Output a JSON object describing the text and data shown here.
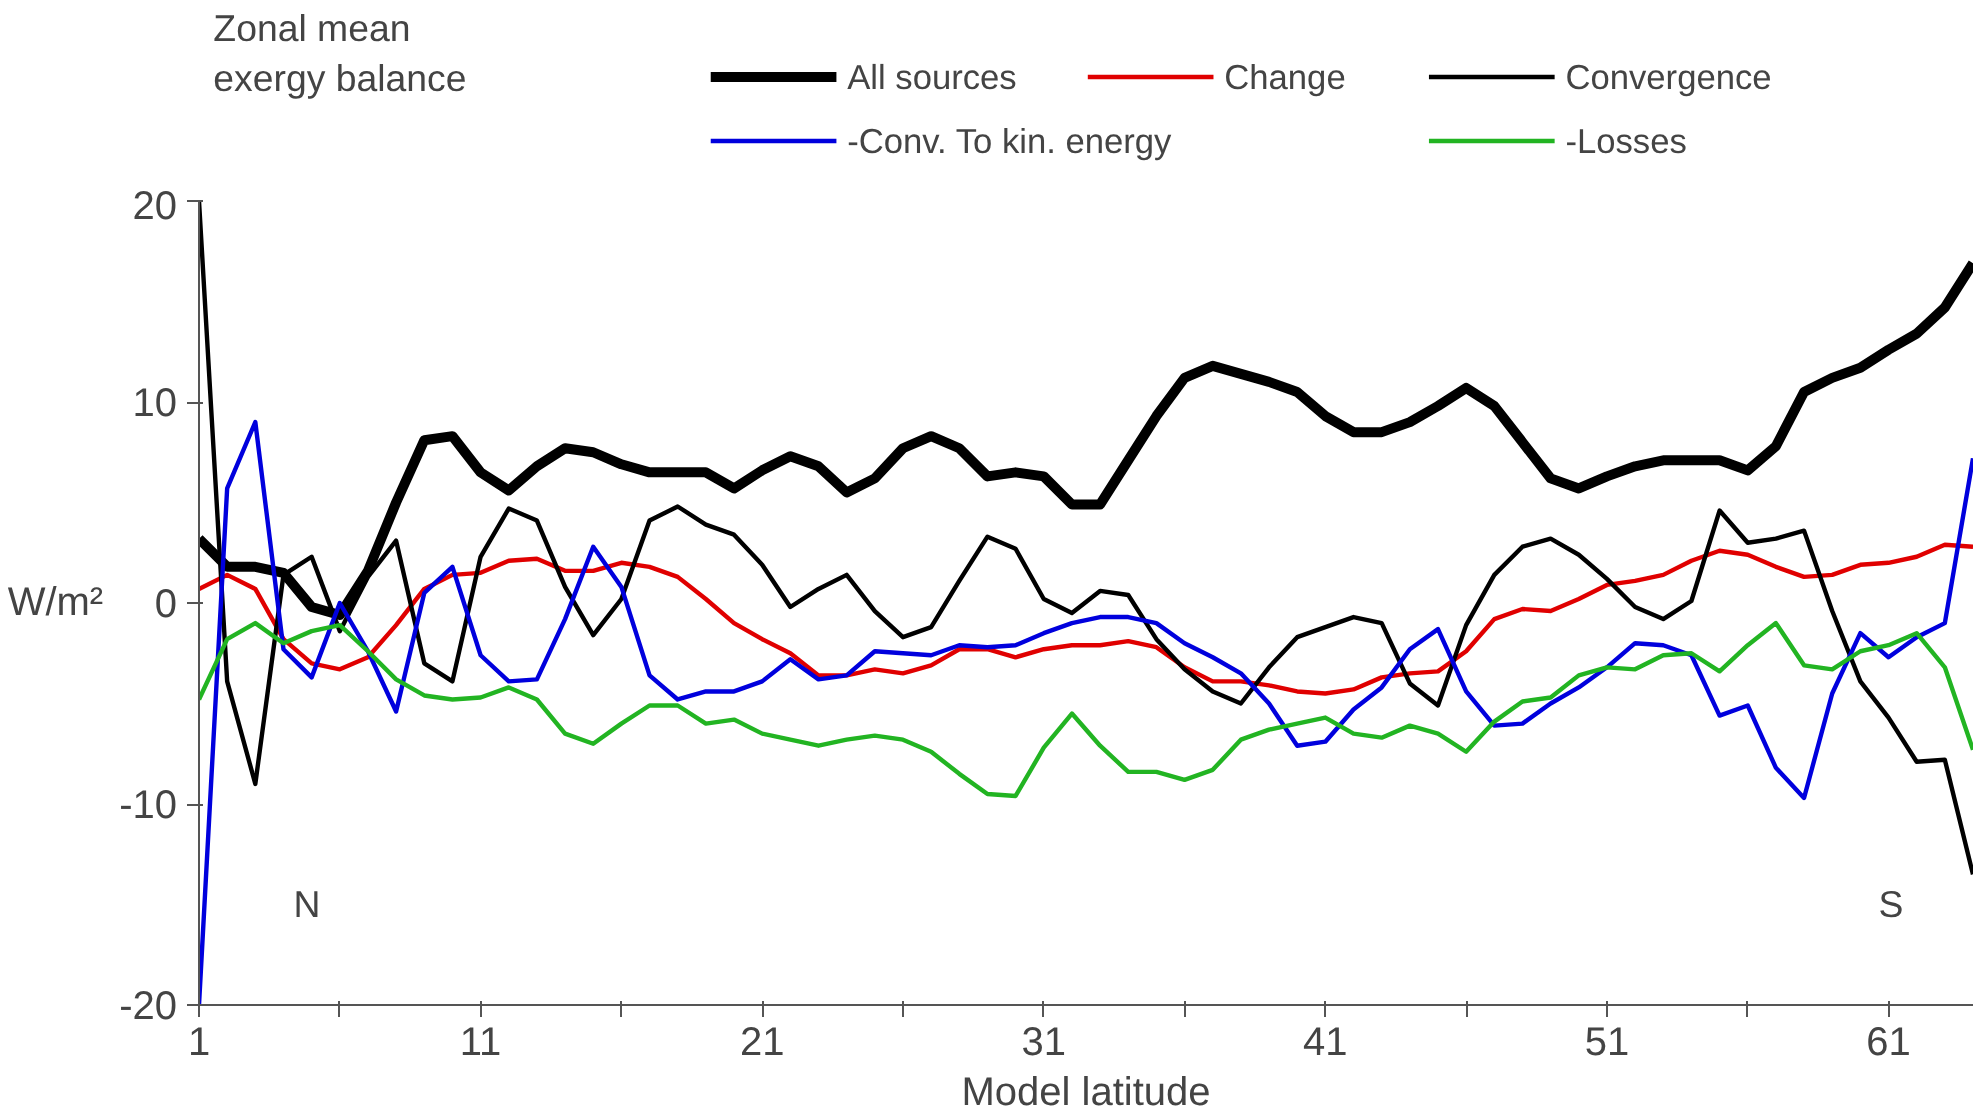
{
  "chart_data": {
    "type": "line",
    "title": "Zonal mean\nexergy balance",
    "xlabel": "Model latitude",
    "ylabel": "W/m²",
    "x": [
      1,
      2,
      3,
      4,
      5,
      6,
      7,
      8,
      9,
      10,
      11,
      12,
      13,
      14,
      15,
      16,
      17,
      18,
      19,
      20,
      21,
      22,
      23,
      24,
      25,
      26,
      27,
      28,
      29,
      30,
      31,
      32,
      33,
      34,
      35,
      36,
      37,
      38,
      39,
      40,
      41,
      42,
      43,
      44,
      45,
      46,
      47,
      48,
      49,
      50,
      51,
      52,
      53,
      54,
      55,
      56,
      57,
      58,
      59,
      60,
      61,
      62,
      63,
      64
    ],
    "series": [
      {
        "name": "All sources",
        "color": "#000000",
        "values": [
          3.2,
          1.8,
          1.8,
          1.5,
          -0.2,
          -0.6,
          1.6,
          5.0,
          8.1,
          8.3,
          6.5,
          5.6,
          6.8,
          7.7,
          7.5,
          6.9,
          6.5,
          6.5,
          6.5,
          5.7,
          6.6,
          7.3,
          6.8,
          5.5,
          6.2,
          7.7,
          8.3,
          7.7,
          6.3,
          6.5,
          6.3,
          4.9,
          4.9,
          7.1,
          9.3,
          11.2,
          11.8,
          11.4,
          11.0,
          10.5,
          9.3,
          8.5,
          8.5,
          9.0,
          9.8,
          10.7,
          9.8,
          8.0,
          6.2,
          5.7,
          6.3,
          6.8,
          7.1,
          7.1,
          7.1,
          6.6,
          7.8,
          10.5,
          11.2,
          11.7,
          12.6,
          13.4,
          14.7,
          16.9
        ]
      },
      {
        "name": "Change",
        "color": "#e00000",
        "values": [
          0.7,
          1.4,
          0.7,
          -1.8,
          -3.0,
          -3.3,
          -2.7,
          -1.1,
          0.7,
          1.4,
          1.5,
          2.1,
          2.2,
          1.6,
          1.6,
          2.0,
          1.8,
          1.3,
          0.2,
          -1.0,
          -1.8,
          -2.5,
          -3.6,
          -3.6,
          -3.3,
          -3.5,
          -3.1,
          -2.3,
          -2.3,
          -2.7,
          -2.3,
          -2.1,
          -2.1,
          -1.9,
          -2.2,
          -3.2,
          -3.9,
          -3.9,
          -4.1,
          -4.4,
          -4.5,
          -4.3,
          -3.7,
          -3.5,
          -3.4,
          -2.4,
          -0.8,
          -0.3,
          -0.4,
          0.2,
          0.9,
          1.1,
          1.4,
          2.1,
          2.6,
          2.4,
          1.8,
          1.3,
          1.4,
          1.9,
          2.0,
          2.3,
          2.9,
          2.8
        ]
      },
      {
        "name": "Convergence",
        "color": "#000000",
        "values": [
          20,
          -3.9,
          -9.0,
          1.4,
          2.3,
          -1.4,
          1.3,
          3.1,
          -3.0,
          -3.9,
          2.3,
          4.7,
          4.1,
          0.8,
          -1.6,
          0.2,
          4.1,
          4.8,
          3.9,
          3.4,
          1.9,
          -0.2,
          0.7,
          1.4,
          -0.4,
          -1.7,
          -1.2,
          1.1,
          3.3,
          2.7,
          0.2,
          -0.5,
          0.6,
          0.4,
          -1.8,
          -3.3,
          -4.4,
          -5.0,
          -3.2,
          -1.7,
          -1.2,
          -0.7,
          -1.0,
          -4.0,
          -5.1,
          -1.1,
          1.4,
          2.8,
          3.2,
          2.4,
          1.2,
          -0.2,
          -0.8,
          0.1,
          4.6,
          3.0,
          3.2,
          3.6,
          -0.4,
          -3.9,
          -5.7,
          -7.9,
          -7.8,
          -13.5
        ]
      },
      {
        "name": "-Conv. To kin. energy",
        "color": "#0000dd",
        "values": [
          -20,
          5.7,
          9.0,
          -2.3,
          -3.7,
          0.0,
          -2.4,
          -5.4,
          0.5,
          1.8,
          -2.6,
          -3.9,
          -3.8,
          -0.8,
          2.8,
          0.8,
          -3.6,
          -4.8,
          -4.4,
          -4.4,
          -3.9,
          -2.8,
          -3.8,
          -3.6,
          -2.4,
          -2.5,
          -2.6,
          -2.1,
          -2.2,
          -2.1,
          -1.5,
          -1.0,
          -0.7,
          -0.7,
          -1.0,
          -2.0,
          -2.7,
          -3.5,
          -5.0,
          -7.1,
          -6.9,
          -5.3,
          -4.2,
          -2.3,
          -1.3,
          -4.4,
          -6.1,
          -6.0,
          -5.0,
          -4.2,
          -3.2,
          -2.0,
          -2.1,
          -2.6,
          -5.6,
          -5.1,
          -8.2,
          -9.7,
          -4.5,
          -1.5,
          -2.7,
          -1.7,
          -1.0,
          7.2
        ]
      },
      {
        "name": "-Losses",
        "color": "#22b422",
        "values": [
          -4.8,
          -1.8,
          -1.0,
          -2.0,
          -1.4,
          -1.1,
          -2.4,
          -3.8,
          -4.6,
          -4.8,
          -4.7,
          -4.2,
          -4.8,
          -6.5,
          -7.0,
          -6.0,
          -5.1,
          -5.1,
          -6.0,
          -5.8,
          -6.5,
          -6.8,
          -7.1,
          -6.8,
          -6.6,
          -6.8,
          -7.4,
          -8.5,
          -9.5,
          -9.6,
          -7.2,
          -5.5,
          -7.1,
          -8.4,
          -8.4,
          -8.8,
          -8.3,
          -6.8,
          -6.3,
          -6.0,
          -5.7,
          -6.5,
          -6.7,
          -6.1,
          -6.5,
          -7.4,
          -5.9,
          -4.9,
          -4.7,
          -3.6,
          -3.2,
          -3.3,
          -2.6,
          -2.5,
          -3.4,
          -2.1,
          -1.0,
          -3.1,
          -3.3,
          -2.4,
          -2.1,
          -1.5,
          -3.2,
          -7.3
        ]
      }
    ],
    "xlim": [
      1,
      64
    ],
    "ylim": [
      -20,
      20
    ],
    "xticks": [
      1,
      {
        "value": 6,
        "label": null
      },
      11,
      {
        "value": 16,
        "label": null
      },
      21,
      {
        "value": 26,
        "label": null
      },
      31,
      {
        "value": 36,
        "label": null
      },
      41,
      {
        "value": 46,
        "label": null
      },
      51,
      {
        "value": 56,
        "label": null
      },
      61
    ],
    "yticks": [
      -20,
      -10,
      0,
      10,
      20
    ],
    "annotations": [
      "N",
      "S"
    ],
    "grid": false,
    "legend": "top right",
    "marker": "none",
    "line_style": "solid"
  }
}
